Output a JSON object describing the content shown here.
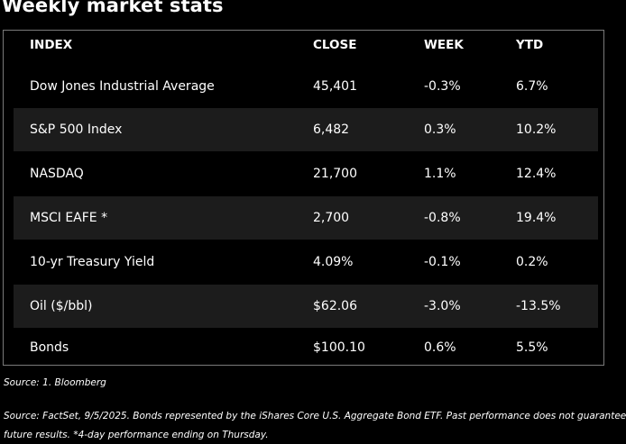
{
  "title": "Weekly market stats",
  "table": {
    "headers": {
      "index": "INDEX",
      "close": "CLOSE",
      "week": "WEEK",
      "ytd": "YTD"
    },
    "rows": [
      {
        "index": "Dow Jones Industrial Average",
        "close": "45,401",
        "week": "-0.3%",
        "ytd": "6.7%"
      },
      {
        "index": "S&P 500 Index",
        "close": "6,482",
        "week": "0.3%",
        "ytd": "10.2%"
      },
      {
        "index": "NASDAQ",
        "close": "21,700",
        "week": "1.1%",
        "ytd": "12.4%"
      },
      {
        "index": "MSCI EAFE *",
        "close": "2,700",
        "week": "-0.8%",
        "ytd": "19.4%"
      },
      {
        "index": "10-yr Treasury Yield",
        "close": "4.09%",
        "week": "-0.1%",
        "ytd": "0.2%"
      },
      {
        "index": "Oil ($/bbl)",
        "close": "$62.06",
        "week": "-3.0%",
        "ytd": "-13.5%"
      },
      {
        "index": "Bonds",
        "close": "$100.10",
        "week": "0.6%",
        "ytd": "5.5%"
      }
    ]
  },
  "notes": {
    "source1": "Source: 1. Bloomberg",
    "source2_line1": "Source: FactSet, 9/5/2025. Bonds represented by the iShares Core U.S. Aggregate Bond ETF. Past performance does not guarantee",
    "source2_line2": "future results. *4-day performance ending on Thursday."
  },
  "colors": {
    "background": "#000000",
    "shaded_row": "#1c1c1c",
    "border": "#7a7a7a",
    "text": "#ffffff"
  }
}
